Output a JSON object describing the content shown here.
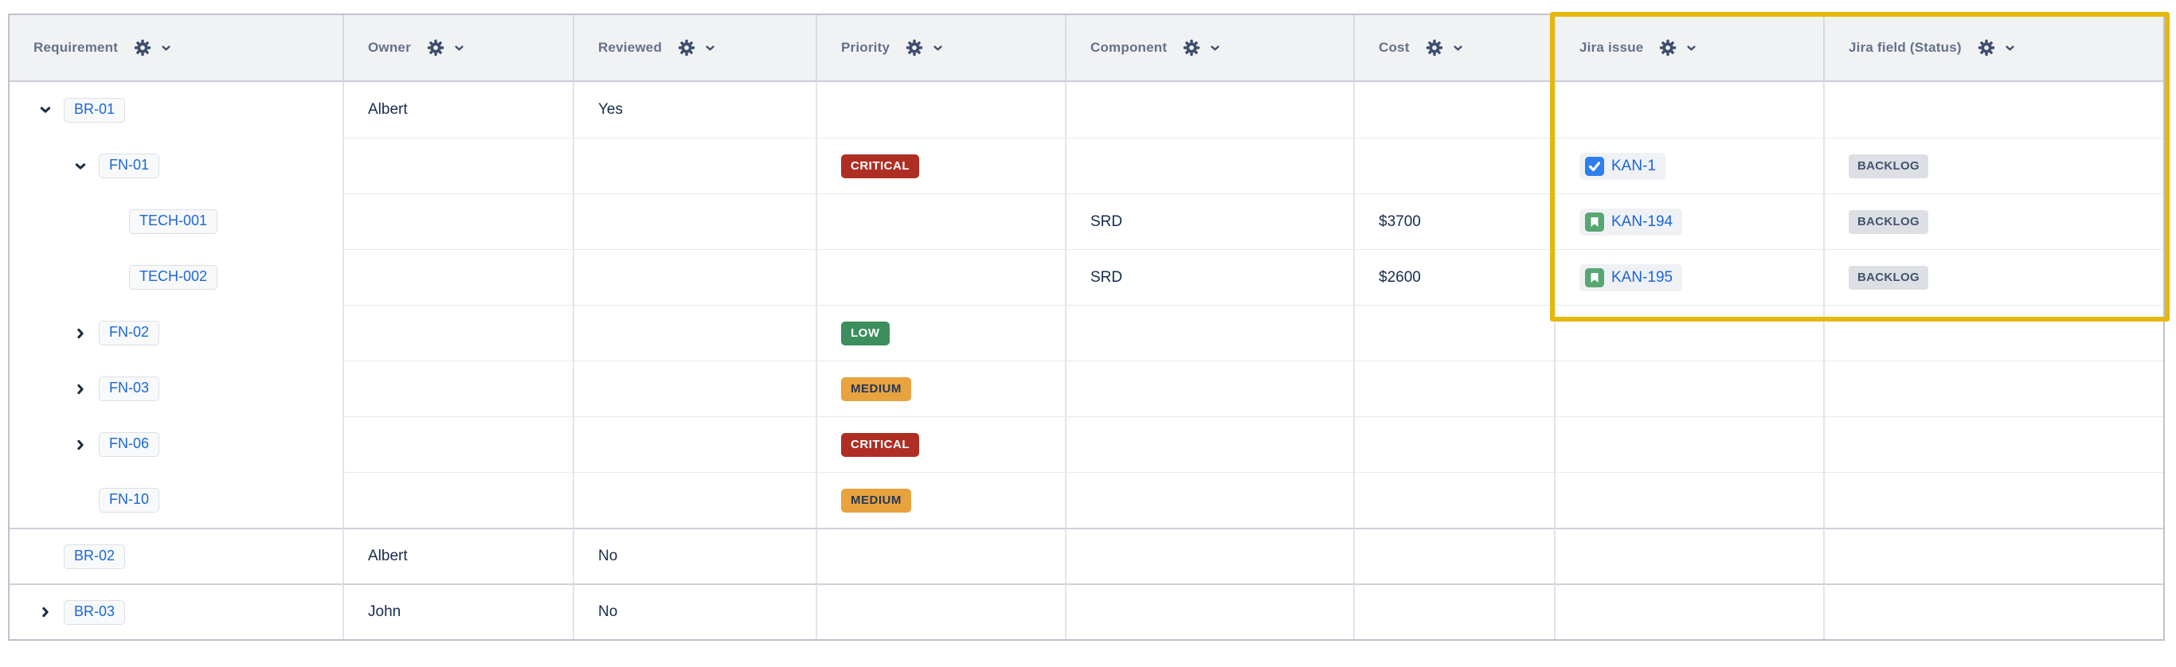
{
  "table": {
    "columns": [
      {
        "label": "Requirement"
      },
      {
        "label": "Owner"
      },
      {
        "label": "Reviewed"
      },
      {
        "label": "Priority"
      },
      {
        "label": "Component"
      },
      {
        "label": "Cost"
      },
      {
        "label": "Jira issue"
      },
      {
        "label": "Jira field (Status)"
      }
    ],
    "header_control_icons": [
      "gear-icon",
      "chevron-down-icon"
    ],
    "rows": [
      {
        "key": "BR-01",
        "level": 0,
        "expand": "expanded",
        "owner": "Albert",
        "reviewed": "Yes",
        "priority": "",
        "component": "",
        "cost": "",
        "jira_issue": "",
        "jira_issue_type": "",
        "jira_status": "",
        "group_start": false
      },
      {
        "key": "FN-01",
        "level": 1,
        "expand": "expanded",
        "owner": "",
        "reviewed": "",
        "priority": "CRITICAL",
        "component": "",
        "cost": "",
        "jira_issue": "KAN-1",
        "jira_issue_type": "task",
        "jira_status": "BACKLOG",
        "group_start": false
      },
      {
        "key": "TECH-001",
        "level": 2,
        "expand": "none",
        "owner": "",
        "reviewed": "",
        "priority": "",
        "component": "SRD",
        "cost": "$3700",
        "jira_issue": "KAN-194",
        "jira_issue_type": "story",
        "jira_status": "BACKLOG",
        "group_start": false
      },
      {
        "key": "TECH-002",
        "level": 2,
        "expand": "none",
        "owner": "",
        "reviewed": "",
        "priority": "",
        "component": "SRD",
        "cost": "$2600",
        "jira_issue": "KAN-195",
        "jira_issue_type": "story",
        "jira_status": "BACKLOG",
        "group_start": false
      },
      {
        "key": "FN-02",
        "level": 1,
        "expand": "collapsed",
        "owner": "",
        "reviewed": "",
        "priority": "LOW",
        "component": "",
        "cost": "",
        "jira_issue": "",
        "jira_issue_type": "",
        "jira_status": "",
        "group_start": false
      },
      {
        "key": "FN-03",
        "level": 1,
        "expand": "collapsed",
        "owner": "",
        "reviewed": "",
        "priority": "MEDIUM",
        "component": "",
        "cost": "",
        "jira_issue": "",
        "jira_issue_type": "",
        "jira_status": "",
        "group_start": false
      },
      {
        "key": "FN-06",
        "level": 1,
        "expand": "collapsed",
        "owner": "",
        "reviewed": "",
        "priority": "CRITICAL",
        "component": "",
        "cost": "",
        "jira_issue": "",
        "jira_issue_type": "",
        "jira_status": "",
        "group_start": false
      },
      {
        "key": "FN-10",
        "level": 1,
        "expand": "none",
        "owner": "",
        "reviewed": "",
        "priority": "MEDIUM",
        "component": "",
        "cost": "",
        "jira_issue": "",
        "jira_issue_type": "",
        "jira_status": "",
        "group_start": false
      },
      {
        "key": "BR-02",
        "level": 0,
        "expand": "none",
        "owner": "Albert",
        "reviewed": "No",
        "priority": "",
        "component": "",
        "cost": "",
        "jira_issue": "",
        "jira_issue_type": "",
        "jira_status": "",
        "group_start": true
      },
      {
        "key": "BR-03",
        "level": 0,
        "expand": "collapsed",
        "owner": "John",
        "reviewed": "No",
        "priority": "",
        "component": "",
        "cost": "",
        "jira_issue": "",
        "jira_issue_type": "",
        "jira_status": "",
        "group_start": true
      }
    ]
  },
  "badges": {
    "priority_colors": {
      "CRITICAL": {
        "bg": "#ae2e24",
        "fg": "#ffffff"
      },
      "LOW": {
        "bg": "#3c8e5d",
        "fg": "#ffffff"
      },
      "MEDIUM": {
        "bg": "#e8a23e",
        "fg": "#253858"
      }
    },
    "status_colors": {
      "BACKLOG": {
        "bg": "#dcdfe4",
        "fg": "#44546f"
      }
    }
  },
  "jira": {
    "issue_type_icon_colors": {
      "task": "#2e7eed",
      "story": "#57a773"
    },
    "issue_link_color": "#1a66db"
  },
  "requirement_key_color": "#1a66db",
  "highlight": {
    "color": "#e7b70d",
    "columns_covered": [
      "Jira issue",
      "Jira field (Status)"
    ]
  }
}
